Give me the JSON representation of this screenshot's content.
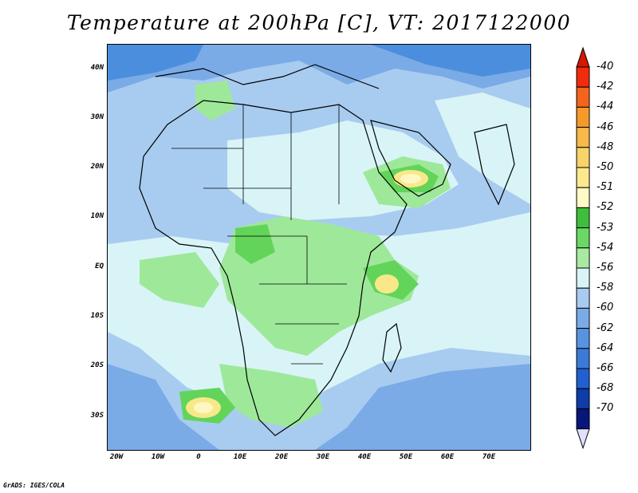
{
  "title": "Temperature at 200hPa [C], VT: 2017122000",
  "credit": "GrADS: IGES/COLA",
  "map": {
    "lat_labels": [
      "40N",
      "30N",
      "20N",
      "10N",
      "EQ",
      "10S",
      "20S",
      "30S"
    ],
    "lon_labels": [
      "20W",
      "10W",
      "0",
      "10E",
      "20E",
      "30E",
      "40E",
      "50E",
      "60E",
      "70E"
    ],
    "field_colors": {
      "background": "#a8ccf0",
      "cold": "#7aabe6",
      "colder": "#4c8ede",
      "mild": "#d8f4f6",
      "green_light": "#9ee89a",
      "green": "#62d45a",
      "green_dark": "#2fa832",
      "yellow": "#f8e88a",
      "pale_yellow": "#fff7c2"
    }
  },
  "colorbar": {
    "labels": [
      "-40",
      "-42",
      "-44",
      "-46",
      "-48",
      "-50",
      "-51",
      "-52",
      "-53",
      "-54",
      "-56",
      "-58",
      "-60",
      "-62",
      "-64",
      "-66",
      "-68",
      "-70"
    ],
    "colors": [
      "#f02c0c",
      "#f5641e",
      "#f59a28",
      "#f8b84a",
      "#f7d36a",
      "#fce98e",
      "#fffac6",
      "#3fbe3c",
      "#6ad864",
      "#a8eaa2",
      "#d8f4f6",
      "#a8ccf0",
      "#7aabe6",
      "#5893e0",
      "#3c7ad8",
      "#2160d0",
      "#0e3ca8",
      "#08157a"
    ],
    "top_arrow_color": "#d61800",
    "bottom_arrow_color": "#e0e0ff"
  }
}
